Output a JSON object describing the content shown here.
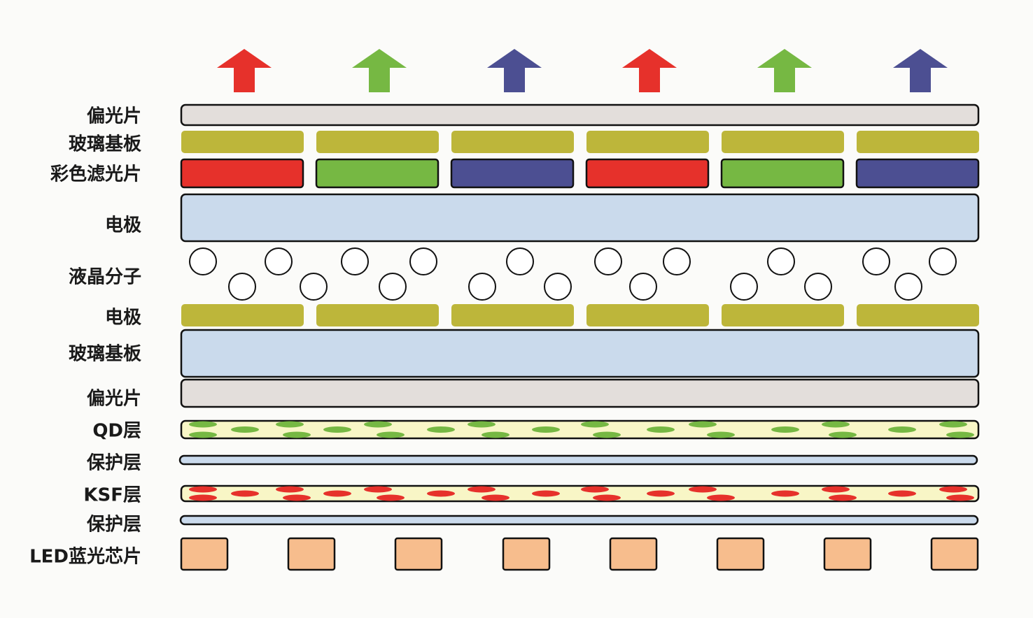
{
  "labels": {
    "polarizer_top": "偏光片",
    "glass_top": "玻璃基板",
    "color_filter": "彩色滤光片",
    "electrode_top": "电极",
    "liquid_crystal": "液晶分子",
    "electrode_bottom": "电极",
    "glass_bottom": "玻璃基板",
    "polarizer_bottom": "偏光片",
    "qd_layer": "QD层",
    "protect_1": "保护层",
    "ksf_layer": "KSF层",
    "protect_2": "保护层",
    "led_chip": "LED蓝光芯片"
  },
  "colors": {
    "red": "#e6312b",
    "green": "#76b843",
    "blue": "#4c4f92",
    "olive": "#bdb63a",
    "light_blue": "#cadaec",
    "polarizer": "#e3dedb",
    "phosphor_bg": "#f8f6c6",
    "led": "#f7bd8d"
  },
  "arrow_colors": [
    "red",
    "green",
    "blue",
    "red",
    "green",
    "blue"
  ],
  "filter_colors": [
    "red",
    "green",
    "blue",
    "red",
    "green",
    "blue"
  ]
}
